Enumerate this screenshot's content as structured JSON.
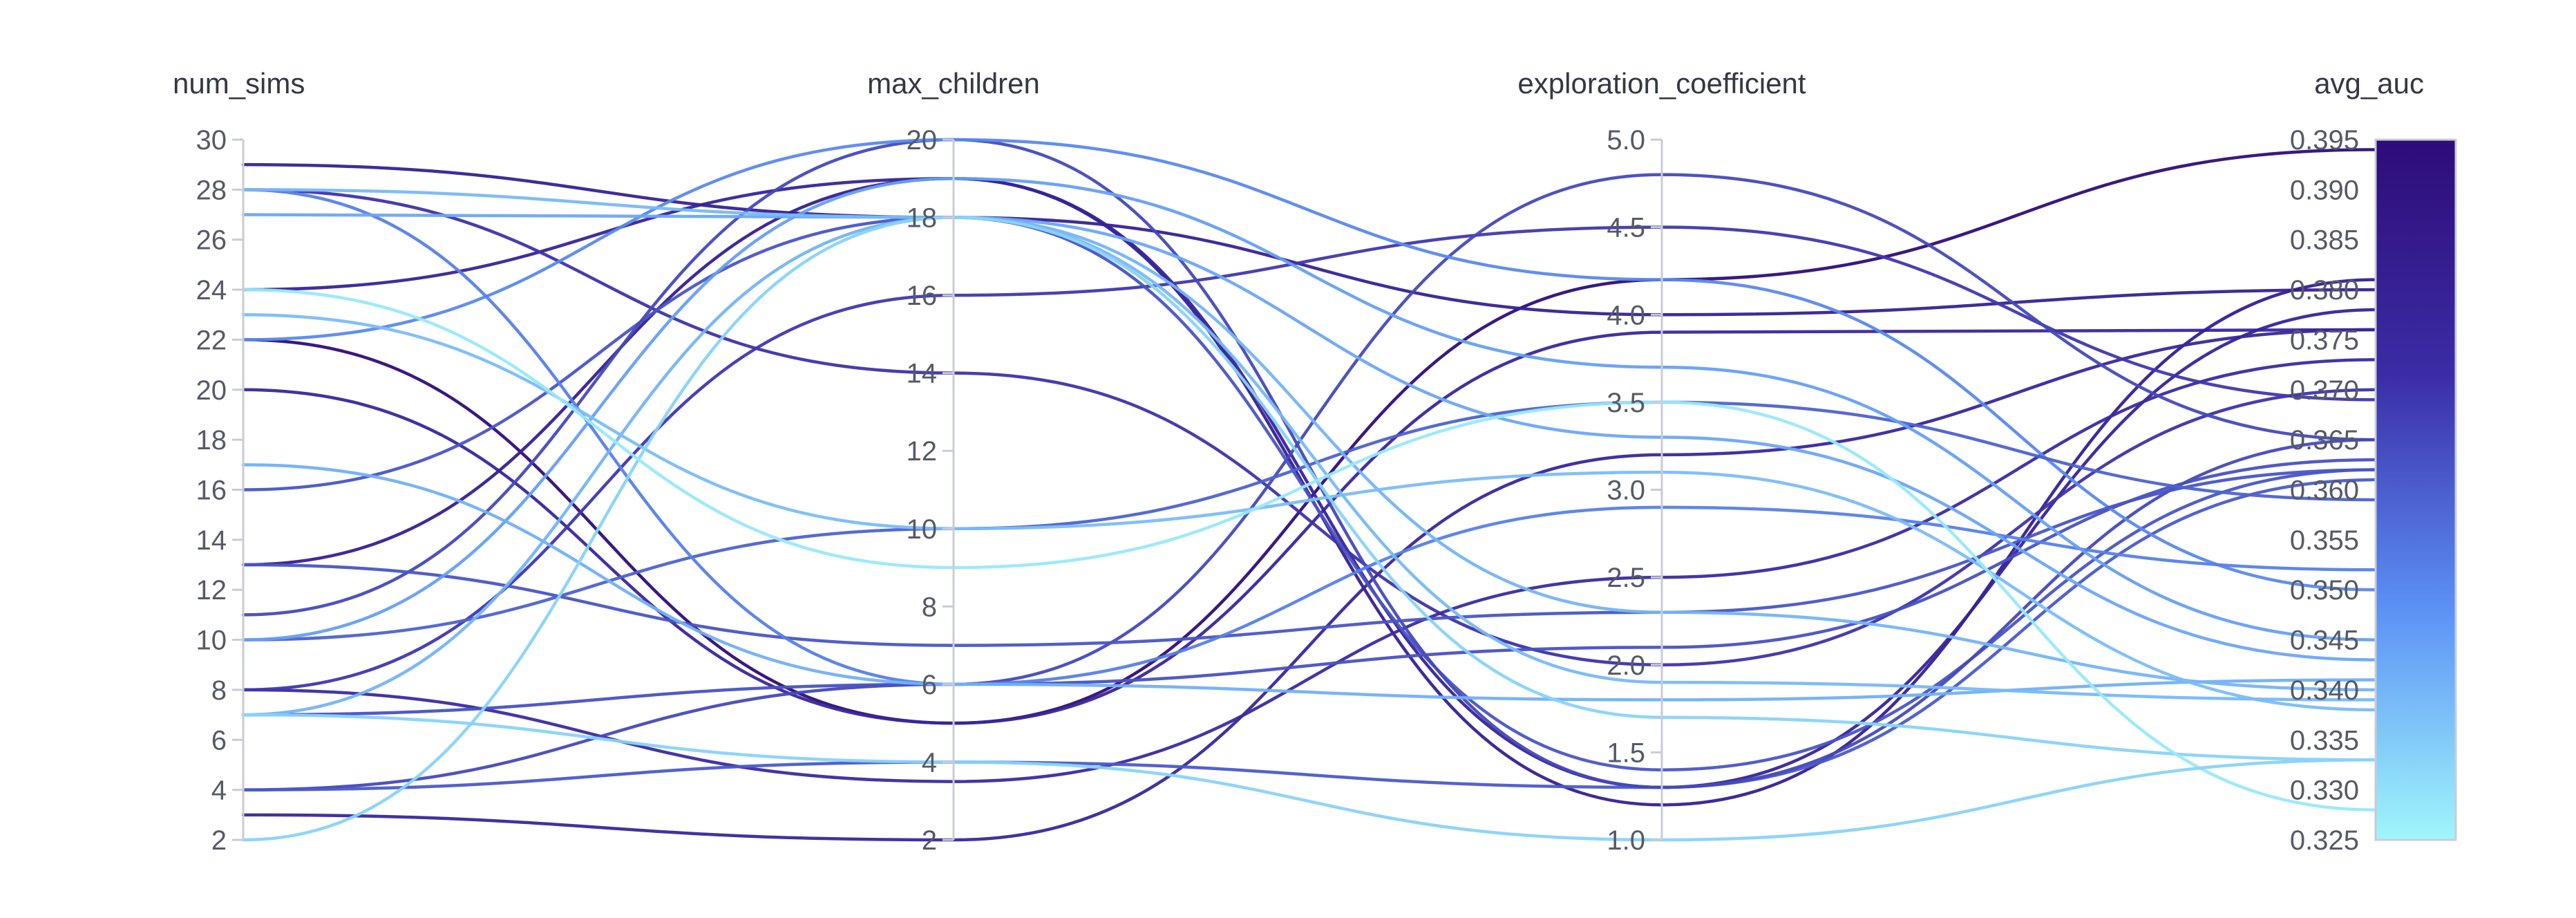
{
  "chart_data": {
    "type": "parallel_coordinates",
    "axes": [
      {
        "key": "num_sims",
        "label": "num_sims",
        "range": [
          2,
          30
        ],
        "ticks": [
          "2",
          "4",
          "6",
          "8",
          "10",
          "12",
          "14",
          "16",
          "18",
          "20",
          "22",
          "24",
          "26",
          "28",
          "30"
        ]
      },
      {
        "key": "max_children",
        "label": "max_children",
        "range": [
          2,
          20
        ],
        "ticks": [
          "2",
          "4",
          "6",
          "8",
          "10",
          "12",
          "14",
          "16",
          "18",
          "20"
        ]
      },
      {
        "key": "exploration_coefficient",
        "label": "exploration_coefficient",
        "range": [
          1.0,
          5.0
        ],
        "ticks": [
          "1.0",
          "1.5",
          "2.0",
          "2.5",
          "3.0",
          "3.5",
          "4.0",
          "4.5",
          "5.0"
        ]
      },
      {
        "key": "avg_auc",
        "label": "avg_auc",
        "range": [
          0.325,
          0.395
        ],
        "ticks": [
          "0.325",
          "0.330",
          "0.335",
          "0.340",
          "0.345",
          "0.350",
          "0.355",
          "0.360",
          "0.365",
          "0.370",
          "0.375",
          "0.380",
          "0.385",
          "0.390",
          "0.395"
        ]
      }
    ],
    "color_scale": {
      "metric": "avg_auc",
      "min": 0.325,
      "max": 0.395,
      "colors": [
        "#a0f6fb",
        "#5b90f5",
        "#3b2ca5",
        "#2e0c78"
      ]
    },
    "lines": [
      {
        "num_sims": 22,
        "max_children": 5,
        "exploration_coefficient": 4.2,
        "avg_auc": 0.394
      },
      {
        "num_sims": 20,
        "max_children": 5,
        "exploration_coefficient": 3.9,
        "avg_auc": 0.376
      },
      {
        "num_sims": 29,
        "max_children": 18,
        "exploration_coefficient": 4.0,
        "avg_auc": 0.38
      },
      {
        "num_sims": 13,
        "max_children": 19,
        "exploration_coefficient": 1.2,
        "avg_auc": 0.381
      },
      {
        "num_sims": 24,
        "max_children": 19,
        "exploration_coefficient": 1.3,
        "avg_auc": 0.378
      },
      {
        "num_sims": 3,
        "max_children": 2,
        "exploration_coefficient": 3.2,
        "avg_auc": 0.376
      },
      {
        "num_sims": 28,
        "max_children": 14,
        "exploration_coefficient": 2.0,
        "avg_auc": 0.37
      },
      {
        "num_sims": 8,
        "max_children": 3.5,
        "exploration_coefficient": 2.5,
        "avg_auc": 0.373
      },
      {
        "num_sims": 8,
        "max_children": 16,
        "exploration_coefficient": 4.5,
        "avg_auc": 0.369
      },
      {
        "num_sims": 4,
        "max_children": 6,
        "exploration_coefficient": 4.8,
        "avg_auc": 0.365
      },
      {
        "num_sims": 16,
        "max_children": 18,
        "exploration_coefficient": 1.4,
        "avg_auc": 0.362
      },
      {
        "num_sims": 4,
        "max_children": 4,
        "exploration_coefficient": 1.3,
        "avg_auc": 0.361
      },
      {
        "num_sims": 11,
        "max_children": 20,
        "exploration_coefficient": 1.3,
        "avg_auc": 0.365
      },
      {
        "num_sims": 7,
        "max_children": 6,
        "exploration_coefficient": 2.1,
        "avg_auc": 0.363
      },
      {
        "num_sims": 22,
        "max_children": 20,
        "exploration_coefficient": 4.2,
        "avg_auc": 0.35
      },
      {
        "num_sims": 13,
        "max_children": 7,
        "exploration_coefficient": 2.3,
        "avg_auc": 0.362
      },
      {
        "num_sims": 10,
        "max_children": 10,
        "exploration_coefficient": 3.5,
        "avg_auc": 0.359
      },
      {
        "num_sims": 28,
        "max_children": 6,
        "exploration_coefficient": 2.9,
        "avg_auc": 0.352
      },
      {
        "num_sims": 10,
        "max_children": 19,
        "exploration_coefficient": 3.7,
        "avg_auc": 0.345
      },
      {
        "num_sims": 27,
        "max_children": 18,
        "exploration_coefficient": 3.3,
        "avg_auc": 0.343
      },
      {
        "num_sims": 17,
        "max_children": 6,
        "exploration_coefficient": 1.8,
        "avg_auc": 0.341
      },
      {
        "num_sims": 7,
        "max_children": 18,
        "exploration_coefficient": 2.3,
        "avg_auc": 0.34
      },
      {
        "num_sims": 23,
        "max_children": 10,
        "exploration_coefficient": 3.1,
        "avg_auc": 0.338
      },
      {
        "num_sims": 28,
        "max_children": 18,
        "exploration_coefficient": 1.9,
        "avg_auc": 0.339
      },
      {
        "num_sims": 2,
        "max_children": 18,
        "exploration_coefficient": 1.7,
        "avg_auc": 0.333
      },
      {
        "num_sims": 24,
        "max_children": 9,
        "exploration_coefficient": 3.5,
        "avg_auc": 0.328
      },
      {
        "num_sims": 7,
        "max_children": 4,
        "exploration_coefficient": 1.0,
        "avg_auc": 0.333
      }
    ]
  }
}
